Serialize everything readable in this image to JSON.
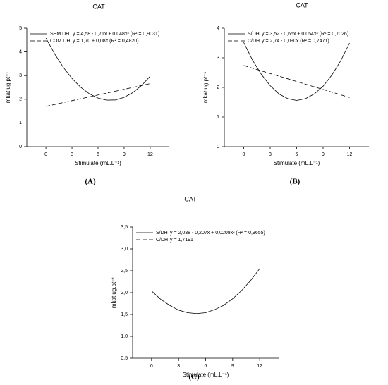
{
  "chart_data": [
    {
      "type": "line",
      "title": "CAT",
      "x_label": "Stimulate (mL.L⁻¹)",
      "y_label": "mkat.ug.pt⁻¹",
      "panel_label": "(A)",
      "x": [
        0,
        1,
        2,
        3,
        4,
        5,
        6,
        7,
        8,
        9,
        10,
        11,
        12
      ],
      "series": [
        {
          "name": "SEM DH",
          "equation": "y = 4,58 - 0,71x + 0,048x² (R² = 0,9031)",
          "color": "#000000",
          "dash": "solid",
          "values": [
            4.58,
            3.92,
            3.35,
            2.88,
            2.51,
            2.23,
            2.05,
            1.96,
            1.97,
            2.08,
            2.28,
            2.58,
            2.97
          ]
        },
        {
          "name": "COM DH",
          "equation": "y = 1,70 + 0,08x (R² = 0,4820)",
          "color": "#000000",
          "dash": "dashed",
          "values": [
            1.7,
            1.78,
            1.86,
            1.94,
            2.02,
            2.1,
            2.18,
            2.26,
            2.34,
            2.42,
            2.5,
            2.58,
            2.66
          ]
        }
      ],
      "xlim": [
        -2.2,
        14.2
      ],
      "xticks": [
        0,
        3,
        6,
        9,
        12
      ],
      "ylim": [
        0,
        5
      ],
      "yticks": [
        0,
        1,
        2,
        3,
        4,
        5
      ],
      "grid": false,
      "legend": "top-left"
    },
    {
      "type": "line",
      "title": "CAT",
      "x_label": "Stimulate (mL.L⁻¹)",
      "y_label": "mkat.ug.pt⁻¹",
      "panel_label": "(B)",
      "x": [
        0,
        1,
        2,
        3,
        4,
        5,
        6,
        7,
        8,
        9,
        10,
        11,
        12
      ],
      "series": [
        {
          "name": "S/DH",
          "equation": "y = 3,52 - 0,65x + 0,054x² (R² = 0,7026)",
          "color": "#000000",
          "dash": "solid",
          "values": [
            3.52,
            2.92,
            2.44,
            2.06,
            1.78,
            1.62,
            1.56,
            1.62,
            1.78,
            2.04,
            2.42,
            2.9,
            3.5
          ]
        },
        {
          "name": "C/DH",
          "equation": "y = 2,74 - 0,090x (R² = 0,7471)",
          "color": "#000000",
          "dash": "dashed",
          "values": [
            2.74,
            2.65,
            2.56,
            2.47,
            2.38,
            2.29,
            2.2,
            2.11,
            2.02,
            1.93,
            1.84,
            1.75,
            1.66
          ]
        }
      ],
      "xlim": [
        -2.2,
        14.2
      ],
      "xticks": [
        0,
        3,
        6,
        9,
        12
      ],
      "ylim": [
        0,
        4
      ],
      "yticks": [
        0,
        1,
        2,
        3,
        4
      ],
      "grid": false,
      "legend": "top-left"
    },
    {
      "type": "line",
      "title": "CAT",
      "x_label": "Stimulate (mL.L⁻¹)",
      "y_label": "mkat.ug.pt⁻¹",
      "panel_label": "(C)",
      "x": [
        0,
        1,
        2,
        3,
        4,
        5,
        6,
        7,
        8,
        9,
        10,
        11,
        12
      ],
      "series": [
        {
          "name": "S/DH",
          "equation": "y = 2,038 - 0,207x + 0,0208x² (R² = 0,9655)",
          "color": "#000000",
          "dash": "solid",
          "values": [
            2.04,
            1.85,
            1.71,
            1.6,
            1.54,
            1.52,
            1.54,
            1.61,
            1.71,
            1.86,
            2.05,
            2.28,
            2.55
          ]
        },
        {
          "name": "C/DH",
          "equation": "y = 1,7191",
          "color": "#000000",
          "dash": "dashed",
          "values": [
            1.72,
            1.72,
            1.72,
            1.72,
            1.72,
            1.72,
            1.72,
            1.72,
            1.72,
            1.72,
            1.72,
            1.72,
            1.72
          ]
        }
      ],
      "xlim": [
        -2.1,
        14.1
      ],
      "xticks": [
        0,
        3,
        6,
        9,
        12
      ],
      "ylim": [
        0.5,
        3.5
      ],
      "yticks": [
        {
          "value": 0.5,
          "label": "0,5"
        },
        {
          "value": 1.0,
          "label": "1,0"
        },
        {
          "value": 1.5,
          "label": "1,5"
        },
        {
          "value": 2.0,
          "label": "2,0"
        },
        {
          "value": 2.5,
          "label": "2,5"
        },
        {
          "value": 3.0,
          "label": "3,0"
        },
        {
          "value": 3.5,
          "label": "3,5"
        }
      ],
      "grid": false,
      "legend": "top-left"
    }
  ]
}
